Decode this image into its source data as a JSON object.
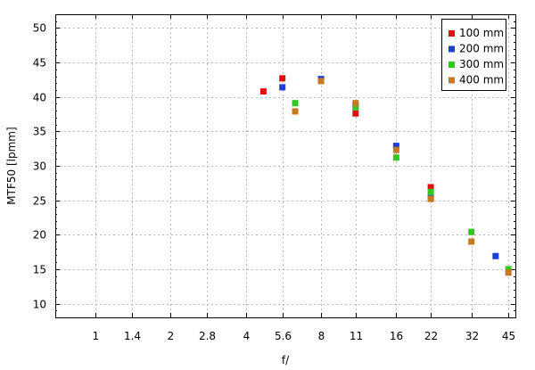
{
  "chart_data": {
    "type": "scatter",
    "xlabel": "f/",
    "ylabel": "MTF50 [lpmm]",
    "x_scale": "log2",
    "xlim": [
      0.69,
      48.0
    ],
    "ylim": [
      8,
      52
    ],
    "x_ticks": [
      1,
      1.4,
      2,
      2.8,
      4,
      5.6,
      8,
      11,
      16,
      22,
      32,
      45
    ],
    "x_tick_labels": [
      "1",
      "1.4",
      "2",
      "2.8",
      "4",
      "5.6",
      "8",
      "11",
      "16",
      "22",
      "32",
      "45"
    ],
    "y_ticks": [
      10,
      15,
      20,
      25,
      30,
      35,
      40,
      45,
      50
    ],
    "grid": true,
    "legend_position": "top-right",
    "series": [
      {
        "name": "100 mm",
        "color": "#e01010",
        "x": [
          4.7,
          5.6,
          11,
          22
        ],
        "y": [
          40.8,
          42.7,
          37.6,
          26.9
        ]
      },
      {
        "name": "200 mm",
        "color": "#1c3fd8",
        "x": [
          5.6,
          8,
          11,
          16,
          22,
          40
        ],
        "y": [
          41.4,
          42.6,
          38.7,
          32.9,
          25.4,
          16.9
        ]
      },
      {
        "name": "300 mm",
        "color": "#30c820",
        "x": [
          6.3,
          11,
          16,
          22,
          32,
          45
        ],
        "y": [
          39.1,
          38.5,
          31.2,
          26.2,
          20.4,
          15.0
        ]
      },
      {
        "name": "400 mm",
        "color": "#c87820",
        "x": [
          6.3,
          8,
          11,
          16,
          22,
          32,
          45
        ],
        "y": [
          37.9,
          42.3,
          39.1,
          32.3,
          25.2,
          19.0,
          14.5
        ]
      }
    ]
  }
}
